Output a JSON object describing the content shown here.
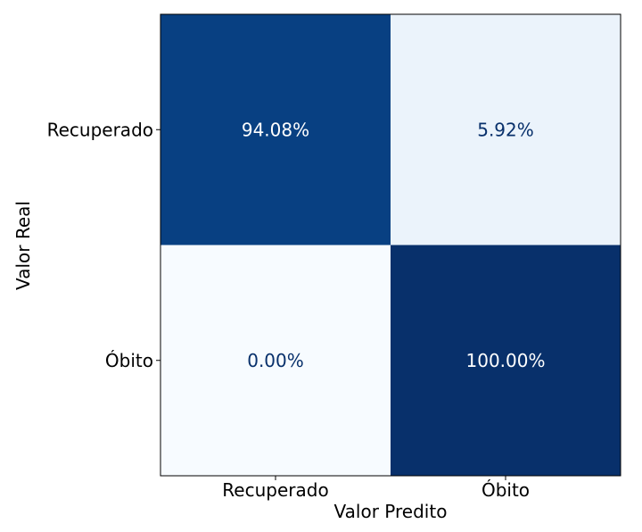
{
  "chart_data": {
    "type": "heatmap",
    "title": "",
    "xlabel": "Valor Predito",
    "ylabel": "Valor Real",
    "x_categories": [
      "Recuperado",
      "Óbito"
    ],
    "y_categories": [
      "Recuperado",
      "Óbito"
    ],
    "values": [
      [
        94.08,
        5.92
      ],
      [
        0.0,
        100.0
      ]
    ],
    "cell_labels": [
      [
        "94.08%",
        "5.92%"
      ],
      [
        "0.00%",
        "100.00%"
      ]
    ],
    "colormap": "Blues",
    "value_range": [
      0,
      100
    ],
    "colors": {
      "low": "#f7fbff",
      "high": "#08306b",
      "text_dark": "#08306b",
      "text_light": "#ffffff",
      "frame": "#000000"
    }
  }
}
